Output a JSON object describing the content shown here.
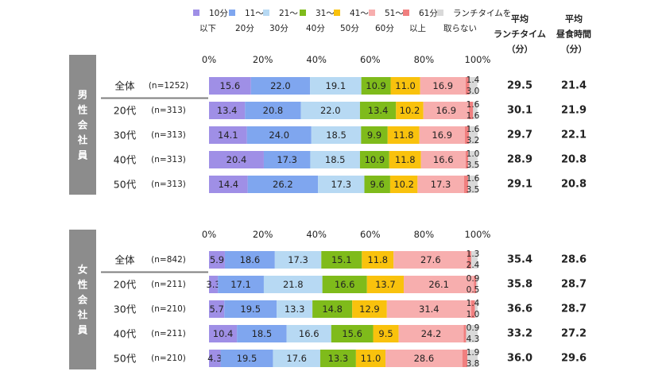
{
  "legend": [
    {
      "line1": "10分",
      "line2": "以下",
      "color": "#9f8fe6"
    },
    {
      "line1": "11〜",
      "line2": "20分",
      "color": "#7fa6ef"
    },
    {
      "line1": "21〜",
      "line2": "30分",
      "color": "#b7d9f3"
    },
    {
      "line1": "31〜",
      "line2": "40分",
      "color": "#7fbb1b"
    },
    {
      "line1": "41〜",
      "line2": "50分",
      "color": "#f9c20d"
    },
    {
      "line1": "51〜",
      "line2": "60分",
      "color": "#f7aeae"
    },
    {
      "line1": "61分",
      "line2": "以上",
      "color": "#f07f7f"
    },
    {
      "line1": "ランチタイムを",
      "line2": "取らない",
      "color": "#d9d9d9"
    }
  ],
  "headers": {
    "lunch": [
      "平均",
      "ランチタイム",
      "（分）"
    ],
    "meal": [
      "平均",
      "昼食時間",
      "（分）"
    ]
  },
  "axis_ticks": [
    "0%",
    "20%",
    "40%",
    "60%",
    "80%",
    "100%"
  ],
  "chart_data": [
    {
      "type": "bar",
      "orientation": "horizontal",
      "stacked": true,
      "group_label": "男性会社員",
      "categories": [
        "全体",
        "20代",
        "30代",
        "40代",
        "50代"
      ],
      "n_labels": [
        "(n=1252)",
        "(n=313)",
        "(n=313)",
        "(n=313)",
        "(n=313)"
      ],
      "xlim": [
        0,
        100
      ],
      "series": [
        {
          "name": "10分以下",
          "values": [
            15.6,
            13.4,
            14.1,
            20.4,
            14.4
          ]
        },
        {
          "name": "11〜20分",
          "values": [
            22.0,
            20.8,
            24.0,
            17.3,
            26.2
          ]
        },
        {
          "name": "21〜30分",
          "values": [
            19.1,
            22.0,
            18.5,
            18.5,
            17.3
          ]
        },
        {
          "name": "31〜40分",
          "values": [
            10.9,
            13.4,
            9.9,
            10.9,
            9.6
          ]
        },
        {
          "name": "41〜50分",
          "values": [
            11.0,
            10.2,
            11.8,
            11.8,
            10.2
          ]
        },
        {
          "name": "51〜60分",
          "values": [
            16.9,
            16.9,
            16.9,
            16.6,
            17.3
          ]
        },
        {
          "name": "61分以上",
          "values": [
            1.4,
            1.6,
            1.6,
            1.0,
            1.6
          ]
        },
        {
          "name": "ランチタイムを取らない",
          "values": [
            3.0,
            1.6,
            3.2,
            3.5,
            3.5
          ]
        }
      ],
      "avg_lunch_time": [
        "29.5",
        "30.1",
        "29.7",
        "28.9",
        "29.1"
      ],
      "avg_meal_time": [
        "21.4",
        "21.9",
        "22.1",
        "20.8",
        "20.8"
      ]
    },
    {
      "type": "bar",
      "orientation": "horizontal",
      "stacked": true,
      "group_label": "女性会社員",
      "categories": [
        "全体",
        "20代",
        "30代",
        "40代",
        "50代"
      ],
      "n_labels": [
        "(n=842)",
        "(n=211)",
        "(n=210)",
        "(n=211)",
        "(n=210)"
      ],
      "xlim": [
        0,
        100
      ],
      "series": [
        {
          "name": "10分以下",
          "values": [
            5.9,
            3.3,
            5.7,
            10.4,
            4.3
          ]
        },
        {
          "name": "11〜20分",
          "values": [
            18.6,
            17.1,
            19.5,
            18.5,
            19.5
          ]
        },
        {
          "name": "21〜30分",
          "values": [
            17.3,
            21.8,
            13.3,
            16.6,
            17.6
          ]
        },
        {
          "name": "31〜40分",
          "values": [
            15.1,
            16.6,
            14.8,
            15.6,
            13.3
          ]
        },
        {
          "name": "41〜50分",
          "values": [
            11.8,
            13.7,
            12.9,
            9.5,
            11.0
          ]
        },
        {
          "name": "51〜60分",
          "values": [
            27.6,
            26.1,
            31.4,
            24.2,
            28.6
          ]
        },
        {
          "name": "61分以上",
          "values": [
            1.3,
            0.9,
            1.4,
            0.9,
            1.9
          ]
        },
        {
          "name": "ランチタイムを取らない",
          "values": [
            2.4,
            0.5,
            1.0,
            4.3,
            3.8
          ]
        }
      ],
      "avg_lunch_time": [
        "35.4",
        "35.8",
        "36.6",
        "33.2",
        "36.0"
      ],
      "avg_meal_time": [
        "28.6",
        "28.7",
        "28.7",
        "27.2",
        "29.6"
      ]
    }
  ]
}
